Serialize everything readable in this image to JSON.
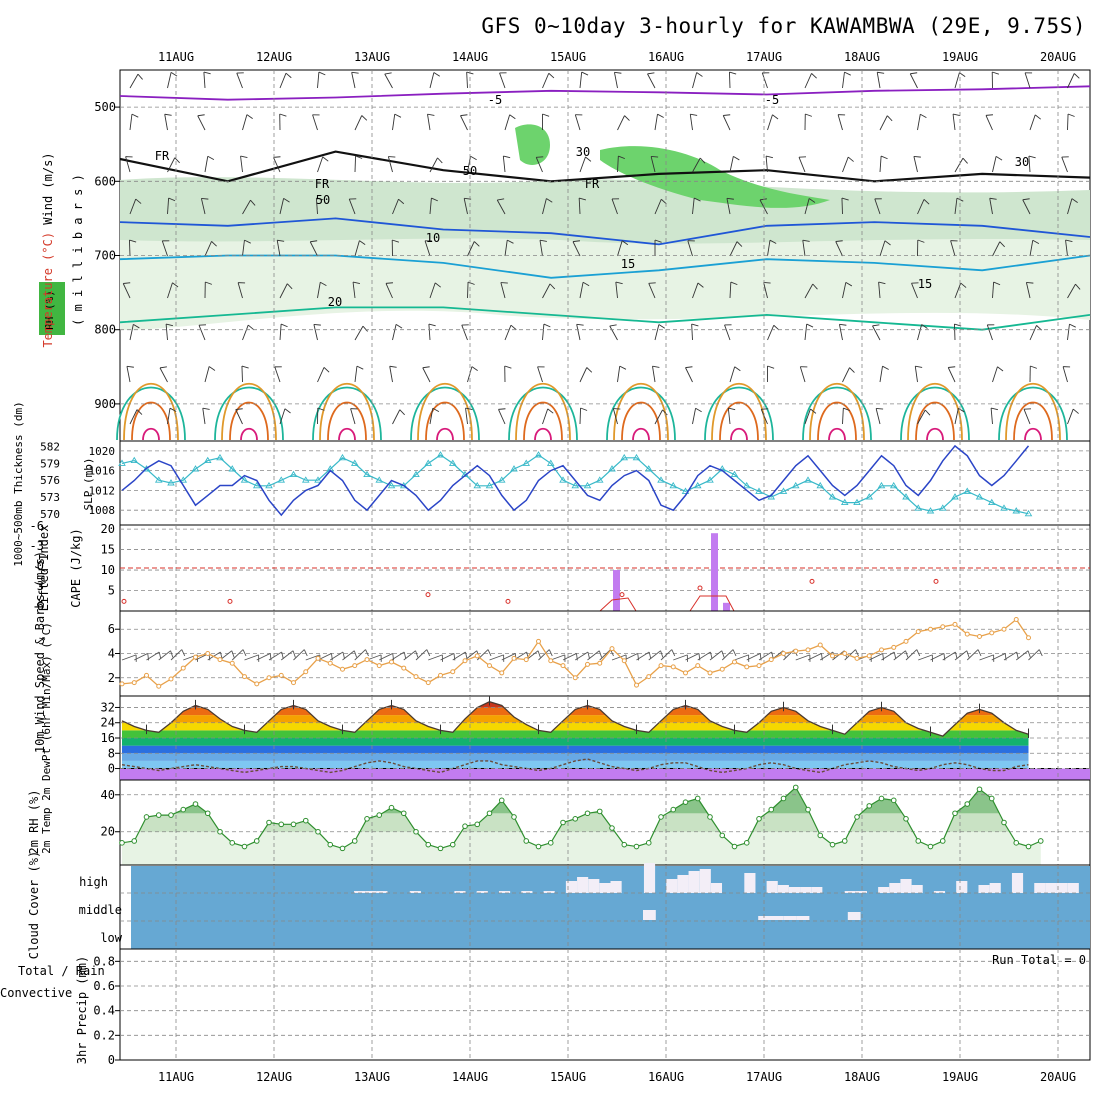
{
  "title": "GFS 0~10day 3-hourly for KAWAMBWA (29E, 9.75S)",
  "dates": [
    "11AUG",
    "12AUG",
    "13AUG",
    "14AUG",
    "15AUG",
    "16AUG",
    "17AUG",
    "18AUG",
    "19AUG",
    "20AUG"
  ],
  "run_total_text": "Run Total = 0",
  "colors": {
    "rh_dark": "#6aaa78",
    "rh_light": "#e7f3e4",
    "cape": "#c27cf0",
    "lifted": "#d8302a",
    "wind_speed": "#e8a14a",
    "slp": "#2b45c7",
    "thick": "#39b9c9",
    "cloud": "#66a8d3",
    "rh2m": "#3aa13a"
  },
  "chart_data": [
    {
      "panel": "upper-air",
      "type": "heatmap",
      "ylabel_parts": [
        "Temperature",
        " (°C)",
        " Wind (m/s)"
      ],
      "ylabel2": "( m i l l i b a r s )",
      "rh_legend": "RH (%)",
      "y_ticks": [
        500,
        600,
        700,
        800,
        900
      ],
      "ylim": [
        950,
        450
      ],
      "contour_labels": [
        "-5",
        "-5",
        "FR",
        "FR",
        "FR",
        "10",
        "15",
        "15",
        "20",
        "30",
        "30",
        "50",
        "50"
      ],
      "isotherms_hPa": [
        {
          "name": "-5",
          "values": [
            485,
            490,
            487,
            482,
            478,
            480,
            483,
            478,
            476,
            472
          ]
        },
        {
          "name": "FR",
          "values": [
            570,
            600,
            560,
            585,
            600,
            590,
            585,
            600,
            590,
            595
          ]
        },
        {
          "name": "10",
          "values": [
            655,
            660,
            650,
            665,
            670,
            685,
            660,
            655,
            660,
            675
          ]
        },
        {
          "name": "15",
          "values": [
            705,
            700,
            700,
            710,
            730,
            720,
            705,
            710,
            720,
            700
          ]
        },
        {
          "name": "20",
          "values": [
            790,
            780,
            770,
            770,
            780,
            790,
            780,
            790,
            800,
            780
          ]
        }
      ]
    },
    {
      "panel": "slp-thickness",
      "type": "line",
      "ylabel_left": "1000~500mb Thickness (dm)",
      "ylabel_right": "SLP (mb)",
      "left_ticks": [
        570,
        573,
        576,
        579,
        582
      ],
      "right_ticks": [
        1008,
        1012,
        1016,
        1020
      ],
      "ylim_slp": [
        1005,
        1022
      ],
      "series": [
        {
          "name": "SLP (mb)",
          "values": [
            1012,
            1014,
            1016.5,
            1018,
            1017,
            1013,
            1009,
            1011,
            1013,
            1013,
            1015,
            1014,
            1010,
            1007,
            1010,
            1012,
            1013,
            1016,
            1014,
            1010,
            1008,
            1011,
            1014,
            1013,
            1011,
            1008,
            1010,
            1013,
            1015,
            1017,
            1015,
            1011,
            1008,
            1010,
            1014,
            1016,
            1017,
            1014,
            1011,
            1010,
            1013,
            1015,
            1016,
            1014,
            1009,
            1008,
            1011,
            1015,
            1017,
            1016,
            1014,
            1012,
            1010,
            1011,
            1014,
            1017,
            1019,
            1016,
            1013,
            1011,
            1013,
            1016,
            1019,
            1017,
            1013,
            1011,
            1014,
            1018,
            1021,
            1019,
            1015,
            1013,
            1015,
            1018,
            1021
          ]
        },
        {
          "name": "1000~500mb Thickness (dm)",
          "values": [
            579,
            579.5,
            578,
            576,
            575.5,
            576,
            578,
            579.5,
            580,
            578,
            576,
            575,
            575,
            576,
            577,
            576,
            576,
            578,
            580,
            579,
            577,
            576,
            575,
            575,
            577,
            579,
            580.5,
            579,
            577,
            575,
            575,
            576,
            578,
            579,
            580.5,
            579,
            576,
            575,
            575,
            576,
            578,
            580,
            580,
            578,
            576,
            575,
            574,
            575,
            576,
            578,
            577,
            575,
            574,
            573,
            574,
            575,
            576,
            575,
            573,
            572,
            572,
            573,
            575,
            575,
            573,
            571,
            570.5,
            571,
            573,
            574,
            573,
            572,
            571,
            570.5,
            570
          ]
        }
      ]
    },
    {
      "panel": "cape-lifted-index",
      "type": "bar",
      "ylabel_left": "Lifted Index",
      "ylabel_right": "CAPE (J/kg)",
      "li_ticks": [
        "-6",
        "-3",
        "0",
        "3",
        "6"
      ],
      "cape_ticks": [
        5,
        10,
        15,
        20
      ],
      "bars": [
        {
          "x": "15AUG 12Z",
          "value": 10
        },
        {
          "x": "16AUG 12Z",
          "value": 19
        },
        {
          "x": "16AUG 15Z",
          "value": 2
        }
      ],
      "lifted_index_min_values": [
        5,
        5,
        4,
        5,
        4,
        3,
        2,
        2
      ]
    },
    {
      "panel": "wind-10m",
      "type": "line",
      "ylabel": "10m Wind Speed & Barbs (m/s)",
      "y_ticks": [
        2,
        4,
        6
      ],
      "ylim": [
        0.5,
        7.5
      ],
      "series": [
        {
          "name": "10m Wind Speed",
          "values": [
            1.5,
            1.6,
            2.2,
            1.3,
            1.9,
            2.8,
            3.7,
            4.0,
            3.5,
            3.2,
            2.1,
            1.5,
            2.0,
            2.2,
            1.6,
            2.5,
            3.6,
            3.2,
            2.7,
            3.0,
            3.5,
            3.0,
            3.3,
            2.8,
            2.1,
            1.6,
            2.2,
            2.5,
            3.4,
            3.8,
            3.0,
            2.4,
            3.6,
            3.5,
            5.0,
            3.4,
            3.0,
            2.0,
            3.1,
            3.2,
            4.4,
            3.4,
            1.4,
            2.1,
            3.0,
            2.9,
            2.4,
            3.0,
            2.4,
            2.7,
            3.3,
            2.9,
            3.0,
            3.5,
            4.0,
            4.2,
            4.3,
            4.7,
            3.8,
            4.0,
            3.6,
            3.8,
            4.3,
            4.5,
            5.0,
            5.8,
            6.0,
            6.2,
            6.4,
            5.6,
            5.4,
            5.7,
            6.0,
            6.8,
            5.3
          ]
        }
      ]
    },
    {
      "panel": "temperature-2m",
      "type": "area",
      "ylabel": "2m Temp 2m DewPt (6hr Min/Max) (°C)",
      "y_ticks": [
        0,
        8,
        16,
        24,
        32
      ],
      "ylim": [
        -6,
        38
      ],
      "series": [
        {
          "name": "2m Temp",
          "values": [
            25,
            22,
            20,
            19,
            24,
            30,
            33,
            31,
            26,
            22,
            20,
            19,
            25,
            31,
            33,
            31,
            25,
            22,
            20,
            19,
            25,
            31,
            33,
            31,
            25,
            22,
            20,
            19,
            26,
            32,
            35,
            33,
            27,
            23,
            20,
            19,
            25,
            31,
            33,
            31,
            25,
            22,
            20,
            19,
            25,
            31,
            33,
            31,
            25,
            22,
            20,
            19,
            24,
            30,
            32,
            30,
            25,
            22,
            20,
            18,
            24,
            30,
            32,
            30,
            24,
            21,
            19,
            17,
            23,
            29,
            31,
            29,
            24,
            20,
            18
          ]
        },
        {
          "name": "2m DewPt",
          "values": [
            2,
            1,
            0,
            -1,
            0,
            1,
            2,
            1,
            0,
            -1,
            -2,
            -1,
            0,
            1,
            1,
            0,
            -1,
            -2,
            -1,
            1,
            3,
            4,
            3,
            1,
            0,
            -1,
            -2,
            0,
            2,
            4,
            4,
            2,
            1,
            0,
            -1,
            0,
            2,
            4,
            5,
            3,
            1,
            0,
            -1,
            0,
            2,
            3,
            3,
            1,
            -1,
            -2,
            -1,
            0,
            2,
            3,
            2,
            0,
            -1,
            -2,
            0,
            2,
            3,
            4,
            3,
            1,
            0,
            -1,
            0,
            2,
            3,
            2,
            0,
            -1,
            -1,
            1,
            2
          ]
        }
      ]
    },
    {
      "panel": "rh-2m",
      "type": "area",
      "ylabel": "2m RH (%)",
      "y_ticks": [
        20,
        40
      ],
      "ylim": [
        2,
        48
      ],
      "series": [
        {
          "name": "2m RH",
          "values": [
            14,
            15,
            28,
            29,
            29,
            32,
            35,
            30,
            20,
            14,
            12,
            15,
            25,
            24,
            24,
            26,
            20,
            13,
            11,
            15,
            27,
            29,
            33,
            30,
            20,
            13,
            11,
            13,
            23,
            24,
            30,
            37,
            28,
            15,
            12,
            14,
            25,
            27,
            30,
            31,
            22,
            13,
            12,
            14,
            28,
            32,
            36,
            38,
            28,
            18,
            12,
            14,
            27,
            32,
            38,
            44,
            32,
            18,
            13,
            15,
            28,
            34,
            38,
            37,
            27,
            15,
            12,
            15,
            30,
            35,
            43,
            38,
            25,
            14,
            12,
            15
          ]
        }
      ]
    },
    {
      "panel": "cloud-cover",
      "type": "heatmap",
      "ylabel": "Cloud Cover (%)",
      "levels": [
        "high",
        "middle",
        "low"
      ],
      "high_values": [
        0,
        0,
        0,
        0,
        0,
        0,
        0,
        0,
        0,
        0,
        0,
        0,
        0,
        0,
        0,
        0,
        0,
        0,
        0,
        0,
        2,
        2,
        2,
        0,
        0,
        2,
        0,
        0,
        0,
        2,
        0,
        2,
        0,
        2,
        0,
        2,
        0,
        2,
        0,
        12,
        16,
        14,
        10,
        12,
        0,
        0,
        30,
        0,
        14,
        18,
        22,
        24,
        10,
        0,
        0,
        20,
        0,
        12,
        8,
        6,
        6,
        6,
        0,
        0,
        2,
        2,
        0,
        6,
        10,
        14,
        8,
        0,
        2,
        0,
        12,
        0,
        8,
        10,
        0,
        20,
        0,
        10,
        10,
        10,
        10,
        0
      ],
      "middle_values": [
        0,
        0,
        0,
        0,
        0,
        0,
        0,
        0,
        0,
        0,
        0,
        0,
        0,
        0,
        0,
        0,
        0,
        0,
        0,
        0,
        0,
        0,
        0,
        0,
        0,
        0,
        0,
        0,
        0,
        0,
        0,
        0,
        0,
        0,
        0,
        0,
        0,
        0,
        0,
        0,
        10,
        0,
        0,
        0,
        0,
        0,
        0,
        0,
        0,
        4,
        4,
        4,
        4,
        0,
        0,
        0,
        8,
        0,
        0,
        0,
        0,
        0,
        0,
        0,
        0,
        0,
        0,
        0,
        0,
        0,
        0,
        0,
        0,
        0,
        0
      ]
    },
    {
      "panel": "precip-3hr",
      "type": "bar",
      "ylabel_parts": [
        "3hr Precip (mm)",
        "Total / Rain",
        "Convective"
      ],
      "y_ticks": [
        0,
        0.2,
        0.4,
        0.6,
        0.8
      ],
      "ylim": [
        0,
        0.9
      ],
      "values": []
    }
  ]
}
